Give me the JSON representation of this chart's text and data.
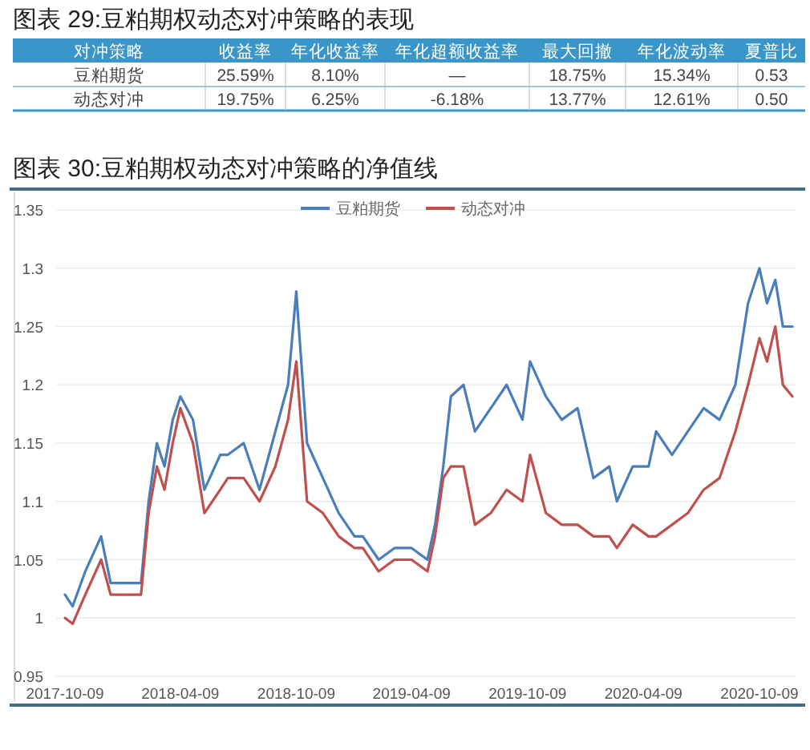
{
  "chart_data": [
    {
      "type": "other",
      "title": "图表 29:豆粕期权动态对冲策略的表现",
      "categories": [
        "对冲策略",
        "收益率",
        "年化收益率",
        "年化超额收益率",
        "最大回撤",
        "年化波动率",
        "夏普比"
      ],
      "annotations": [
        "豆粕期货",
        "25.59%",
        "8.10%",
        "—",
        "18.75%",
        "15.34%",
        "0.53",
        "动态对冲",
        "19.75%",
        "6.25%",
        "-6.18%",
        "13.77%",
        "12.61%",
        "0.50"
      ],
      "color": "#3a96c8"
    },
    {
      "type": "line",
      "title": "图表 30:豆粕期权动态对冲策略的净值线",
      "x": [
        "2017-10-09",
        "2017-10-21",
        "2017-11-10",
        "2017-12-05",
        "2017-12-20",
        "2018-01-12",
        "2018-02-06",
        "2018-02-18",
        "2018-03-03",
        "2018-03-15",
        "2018-03-28",
        "2018-04-09",
        "2018-04-29",
        "2018-05-17",
        "2018-06-11",
        "2018-06-23",
        "2018-07-18",
        "2018-08-12",
        "2018-09-06",
        "2018-09-26",
        "2018-10-09",
        "2018-10-26",
        "2018-11-20",
        "2018-12-15",
        "2019-01-09",
        "2019-01-22",
        "2019-02-16",
        "2019-03-13",
        "2019-04-09",
        "2019-05-04",
        "2019-05-16",
        "2019-05-29",
        "2019-06-10",
        "2019-06-30",
        "2019-07-18",
        "2019-08-12",
        "2019-09-06",
        "2019-10-01",
        "2019-10-13",
        "2019-11-07",
        "2019-12-02",
        "2019-12-27",
        "2020-01-21",
        "2020-02-15",
        "2020-02-27",
        "2020-03-23",
        "2020-04-17",
        "2020-04-29",
        "2020-05-24",
        "2020-06-18",
        "2020-07-13",
        "2020-08-07",
        "2020-09-01",
        "2020-09-21",
        "2020-10-09",
        "2020-10-21",
        "2020-11-03",
        "2020-11-15",
        "2020-11-30"
      ],
      "series": [
        {
          "name": "豆粕期货",
          "color": "#4a7ebb",
          "values": [
            1.02,
            1.01,
            1.04,
            1.07,
            1.03,
            1.03,
            1.03,
            1.1,
            1.15,
            1.13,
            1.17,
            1.19,
            1.17,
            1.11,
            1.14,
            1.14,
            1.15,
            1.11,
            1.16,
            1.2,
            1.28,
            1.15,
            1.12,
            1.09,
            1.07,
            1.07,
            1.05,
            1.06,
            1.06,
            1.05,
            1.08,
            1.13,
            1.19,
            1.2,
            1.16,
            1.18,
            1.2,
            1.17,
            1.22,
            1.19,
            1.17,
            1.18,
            1.12,
            1.13,
            1.1,
            1.13,
            1.13,
            1.16,
            1.14,
            1.16,
            1.18,
            1.17,
            1.2,
            1.27,
            1.3,
            1.27,
            1.29,
            1.25,
            1.25
          ]
        },
        {
          "name": "动态对冲",
          "color": "#c0504d",
          "values": [
            1.0,
            0.995,
            1.02,
            1.05,
            1.02,
            1.02,
            1.02,
            1.09,
            1.13,
            1.11,
            1.15,
            1.18,
            1.15,
            1.09,
            1.11,
            1.12,
            1.12,
            1.1,
            1.13,
            1.17,
            1.22,
            1.1,
            1.09,
            1.07,
            1.06,
            1.06,
            1.04,
            1.05,
            1.05,
            1.04,
            1.07,
            1.12,
            1.13,
            1.13,
            1.08,
            1.09,
            1.11,
            1.1,
            1.14,
            1.09,
            1.08,
            1.08,
            1.07,
            1.07,
            1.06,
            1.08,
            1.07,
            1.07,
            1.08,
            1.09,
            1.11,
            1.12,
            1.16,
            1.2,
            1.24,
            1.22,
            1.25,
            1.2,
            1.19
          ]
        }
      ],
      "xlim": [
        "2017-09-25",
        "2020-12-05"
      ],
      "xticks": [
        "2017-10-09",
        "2018-04-09",
        "2018-10-09",
        "2019-04-09",
        "2019-10-09",
        "2020-04-09",
        "2020-10-09"
      ],
      "ylim": [
        0.95,
        1.35
      ],
      "yticks": [
        0.95,
        1,
        1.05,
        1.1,
        1.15,
        1.2,
        1.25,
        1.3,
        1.35
      ],
      "grid": "y",
      "legend": "top",
      "marker": "none",
      "line_style": "solid"
    }
  ]
}
